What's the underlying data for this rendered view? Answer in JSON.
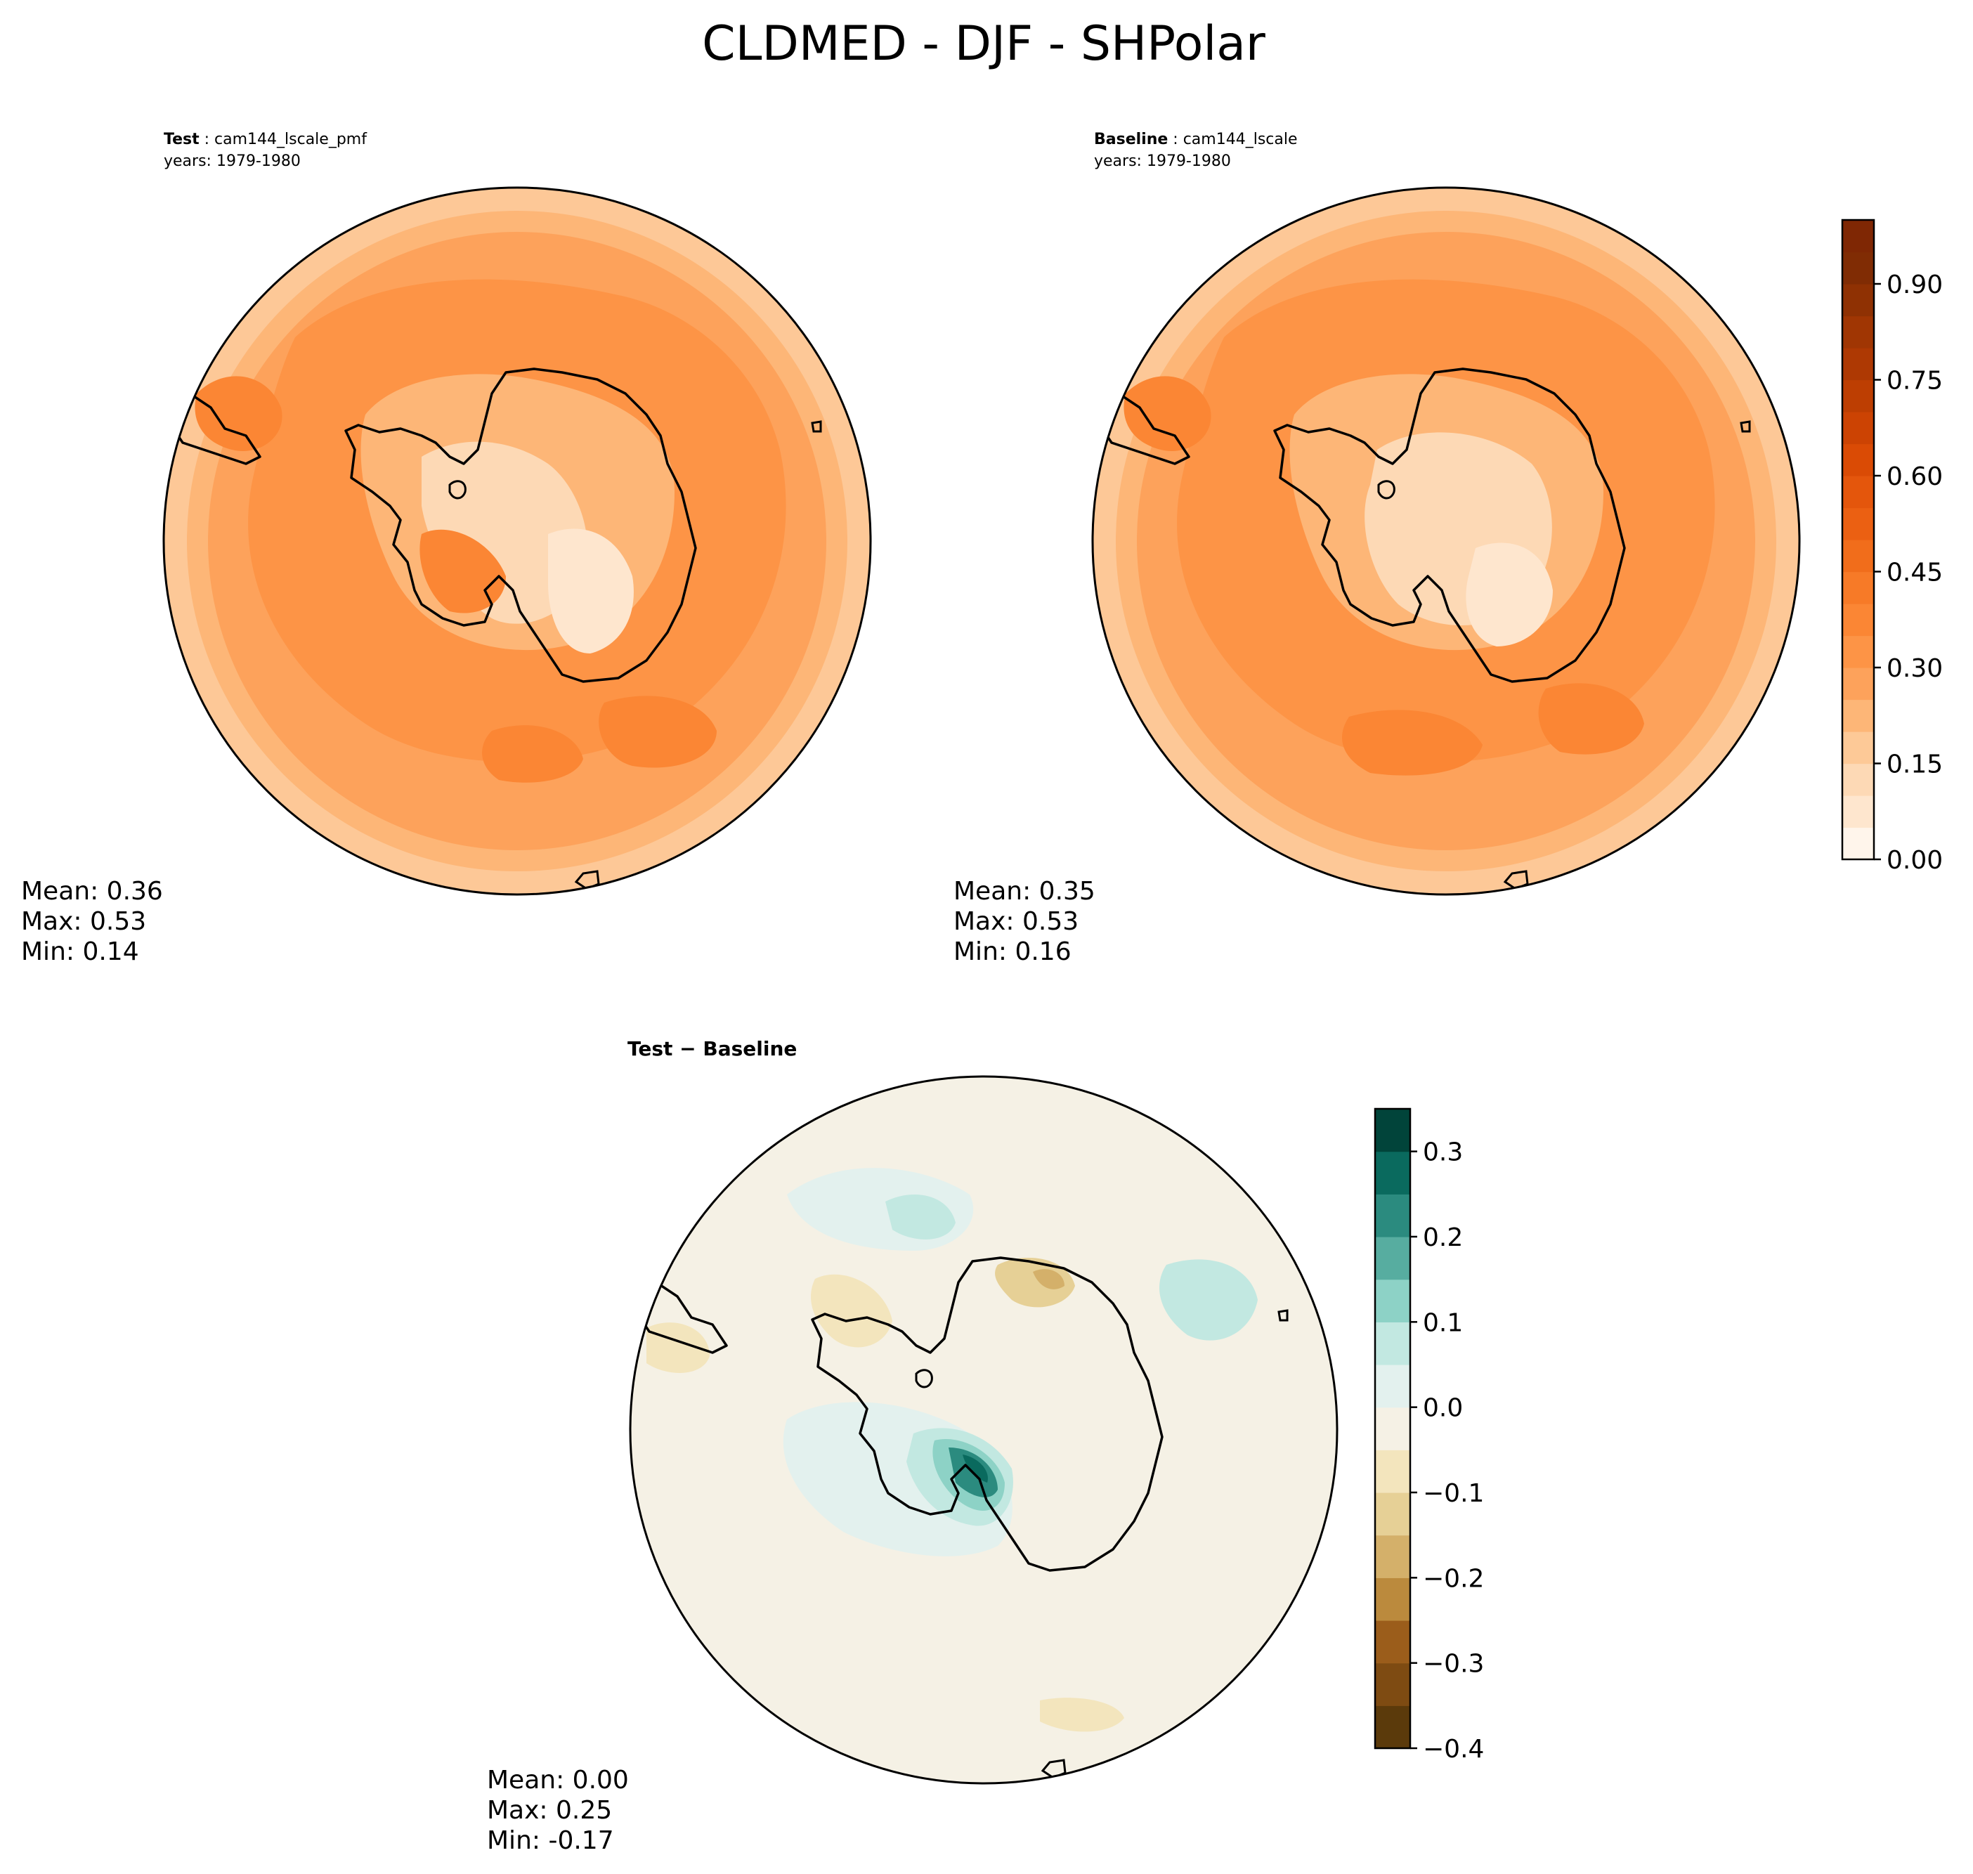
{
  "chart_data": [
    {
      "type": "heatmap",
      "projection": "south-polar-stereographic",
      "figure_title": "CLDMED - DJF - SHPolar",
      "panel_label": "Test",
      "case_name": "cam144_lscale_pmf",
      "years": "years: 1979-1980",
      "stats": {
        "mean": "Mean:  0.36",
        "max": "Max:  0.53",
        "min": "Min:  0.14"
      },
      "mean_value": 0.36,
      "max_value": 0.53,
      "min_value": 0.14,
      "colorbar": {
        "shared_with": "Baseline"
      }
    },
    {
      "type": "heatmap",
      "projection": "south-polar-stereographic",
      "panel_label": "Baseline",
      "case_name": "cam144_lscale",
      "years": "years: 1979-1980",
      "stats": {
        "mean": "Mean:  0.35",
        "max": "Max:  0.53",
        "min": "Min:  0.16"
      },
      "mean_value": 0.35,
      "max_value": 0.53,
      "min_value": 0.16,
      "colorbar": {
        "range": [
          0.0,
          1.0
        ],
        "levels": 20,
        "ticks": [
          0.0,
          0.15,
          0.3,
          0.45,
          0.6,
          0.75,
          0.9
        ],
        "tick_labels": [
          "0.00",
          "0.15",
          "0.30",
          "0.45",
          "0.60",
          "0.75",
          "0.90"
        ],
        "colors": [
          "#fff5eb",
          "#fee6ce",
          "#fdd9b5",
          "#fdc997",
          "#fdb677",
          "#fda25b",
          "#fd9446",
          "#fb8634",
          "#f77a27",
          "#f16d1b",
          "#eb6012",
          "#e4560c",
          "#da4b05",
          "#cc4303",
          "#bd3e02",
          "#ae3903",
          "#a03603",
          "#8f3103",
          "#802c04",
          "#7f2704"
        ]
      }
    },
    {
      "type": "heatmap",
      "projection": "south-polar-stereographic",
      "panel_title": "Test − Baseline",
      "stats": {
        "mean": "Mean:  0.00",
        "max": "Max:  0.25",
        "min": "Min: -0.17"
      },
      "mean_value": 0.0,
      "max_value": 0.25,
      "min_value": -0.17,
      "colorbar": {
        "range": [
          -0.4,
          0.35
        ],
        "levels": 15,
        "ticks": [
          -0.4,
          -0.3,
          -0.2,
          -0.1,
          0.0,
          0.1,
          0.2,
          0.3
        ],
        "tick_labels": [
          "−0.4",
          "−0.3",
          "−0.2",
          "−0.1",
          "0.0",
          "0.1",
          "0.2",
          "0.3"
        ],
        "colors": [
          "#5b3a0b",
          "#7e4b12",
          "#9b5d1b",
          "#bb8a3d",
          "#d4b06a",
          "#e6d096",
          "#f3e5bd",
          "#f5f1e5",
          "#e3f1ee",
          "#c2e8e1",
          "#8dd2c6",
          "#57ada0",
          "#2b8b7f",
          "#0a6a5e",
          "#01443a"
        ]
      }
    }
  ]
}
